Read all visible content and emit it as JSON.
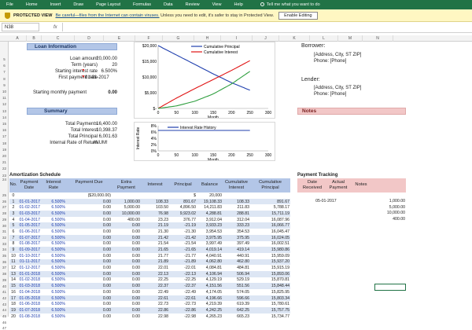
{
  "ribbon": {
    "tabs": [
      "File",
      "Home",
      "Insert",
      "Draw",
      "Page Layout",
      "Formulas",
      "Data",
      "Review",
      "View",
      "Help"
    ],
    "tell_me": "Tell me what you want to do"
  },
  "protected_view": {
    "label": "PROTECTED VIEW",
    "link": "Be careful—files from the Internet can contain viruses.",
    "message": " Unless you need to edit, it's safer to stay in Protected View.",
    "button": "Enable Editing"
  },
  "formula_bar": {
    "name_box": "N38",
    "fx": "fx"
  },
  "columns": [
    "A",
    "B",
    "C",
    "D",
    "E",
    "F",
    "G",
    "H",
    "I",
    "J",
    "K",
    "L",
    "M",
    "N"
  ],
  "rows": [
    "5",
    "6",
    "7",
    "8",
    "9",
    "10",
    "11",
    "12",
    "13",
    "14",
    "15",
    "16",
    "17",
    "18",
    "19",
    "20",
    "21",
    "22",
    "23",
    "24",
    "25",
    "26",
    "27",
    "28",
    "29",
    "30",
    "31",
    "32",
    "33",
    "34",
    "35",
    "36",
    "37",
    "38",
    "39",
    "40",
    "41",
    "42",
    "43",
    "44",
    "45",
    "46",
    "47"
  ],
  "loan_info": {
    "title": "Loan Information",
    "labels": [
      "Loan amount",
      "Term (years)",
      "Starting interest rate",
      "First payment date"
    ],
    "values": [
      "20,000.00",
      "20",
      "6.500%",
      "01-01-2017"
    ],
    "monthly_label": "Starting monthly payment",
    "monthly_value": "0.00"
  },
  "summary": {
    "title": "Summary",
    "labels": [
      "Total Payments",
      "Total Interest",
      "Total Principal",
      "Internal Rate of Return"
    ],
    "values": [
      "16,400.00",
      "10,398.37",
      "6,001.63",
      "#NUM!"
    ]
  },
  "borrower": {
    "label": "Borrower:",
    "address": "[Address, City, ST ZIP]",
    "phone": "Phone: [Phone]"
  },
  "lender": {
    "label": "Lender:",
    "address": "[Address, City, ST ZIP]",
    "phone": "Phone: [Phone]"
  },
  "notes_title": "Notes",
  "chart_data": [
    {
      "type": "line",
      "series": [
        {
          "name": "Cumulative Principal",
          "color": "#1f3fae",
          "x": [
            0,
            50,
            100,
            150,
            200,
            250
          ],
          "values": [
            20000,
            17000,
            14000,
            11000,
            8200,
            5800
          ]
        },
        {
          "name": "Cumulative Interest",
          "color": "#e01414",
          "x": [
            0,
            50,
            100,
            150,
            200,
            250
          ],
          "values": [
            0,
            3300,
            6300,
            9200,
            12100,
            15200
          ]
        },
        {
          "name": "",
          "color": "#2e9e3e",
          "x": [
            0,
            50,
            100,
            150,
            200,
            250
          ],
          "values": [
            0,
            800,
            2300,
            4600,
            7800,
            11800
          ]
        }
      ],
      "xlabel": "Month",
      "ylabel": "",
      "xlim": [
        0,
        300
      ],
      "ylim": [
        0,
        20000
      ],
      "x_ticks": [
        "0",
        "50",
        "100",
        "150",
        "200",
        "250",
        "300"
      ],
      "y_ticks": [
        "$-",
        "$5,000",
        "$10,000",
        "$15,000",
        "$20,000"
      ]
    },
    {
      "type": "line",
      "series": [
        {
          "name": "Interest Rate History",
          "color": "#1f3fae",
          "x": [
            0,
            250
          ],
          "values": [
            6.5,
            6.5
          ]
        }
      ],
      "xlabel": "Month",
      "ylabel": "Interest Rate",
      "xlim": [
        0,
        300
      ],
      "ylim": [
        0,
        8
      ],
      "x_ticks": [
        "0",
        "50",
        "100",
        "150",
        "200",
        "250",
        "300"
      ],
      "y_ticks": [
        "0%",
        "2%",
        "4%",
        "6%",
        "8%"
      ]
    }
  ],
  "amortization": {
    "title": "Amortization Schedule",
    "headers": [
      "No.",
      "Payment Date",
      "Interest Rate",
      "Payment Due",
      "Extra Payment",
      "Interest",
      "Principal",
      "Balance",
      "Cumulative Interest",
      "Cumulative Principal"
    ],
    "row0": [
      "0",
      "",
      "",
      "($20,000.00)",
      "",
      "",
      "$",
      "20,000",
      "",
      ""
    ],
    "rows": [
      [
        "1",
        "01-01-2017",
        "6.500%",
        "0.00",
        "1,000.00",
        "108.33",
        "891.67",
        "19,108.33",
        "108.33",
        "891.67"
      ],
      [
        "2",
        "01-02-2017",
        "6.500%",
        "0.00",
        "5,000.00",
        "103.50",
        "4,896.50",
        "14,211.83",
        "211.83",
        "5,788.17"
      ],
      [
        "3",
        "01-03-2017",
        "6.500%",
        "0.00",
        "10,000.00",
        "76.98",
        "9,923.02",
        "4,288.81",
        "288.81",
        "15,711.19"
      ],
      [
        "4",
        "01-04-2017",
        "6.500%",
        "0.00",
        "400.00",
        "23.23",
        "376.77",
        "3,912.04",
        "312.04",
        "16,087.96"
      ],
      [
        "5",
        "01-05-2017",
        "6.500%",
        "0.00",
        "0.00",
        "21.19",
        "-21.19",
        "3,933.23",
        "333.23",
        "16,066.77"
      ],
      [
        "6",
        "01-06-2017",
        "6.500%",
        "0.00",
        "0.00",
        "21.30",
        "-21.30",
        "3,954.53",
        "354.53",
        "16,045.47"
      ],
      [
        "7",
        "01-07-2017",
        "6.500%",
        "0.00",
        "0.00",
        "21.42",
        "-21.42",
        "3,975.95",
        "375.95",
        "16,024.05"
      ],
      [
        "8",
        "01-08-2017",
        "6.500%",
        "0.00",
        "0.00",
        "21.54",
        "-21.54",
        "3,997.49",
        "397.49",
        "16,002.51"
      ],
      [
        "9",
        "01-09-2017",
        "6.500%",
        "0.00",
        "0.00",
        "21.65",
        "-21.65",
        "4,019.14",
        "419.14",
        "15,980.86"
      ],
      [
        "10",
        "01-10-2017",
        "6.500%",
        "0.00",
        "0.00",
        "21.77",
        "-21.77",
        "4,040.91",
        "440.91",
        "15,959.09"
      ],
      [
        "11",
        "01-11-2017",
        "6.500%",
        "0.00",
        "0.00",
        "21.89",
        "-21.89",
        "4,062.80",
        "462.80",
        "15,937.20"
      ],
      [
        "12",
        "01-12-2017",
        "6.500%",
        "0.00",
        "0.00",
        "22.01",
        "-22.01",
        "4,084.81",
        "484.81",
        "15,915.19"
      ],
      [
        "13",
        "01-01-2018",
        "6.500%",
        "0.00",
        "0.00",
        "22.13",
        "-22.13",
        "4,106.94",
        "506.94",
        "15,893.06"
      ],
      [
        "14",
        "01-02-2018",
        "6.500%",
        "0.00",
        "0.00",
        "22.25",
        "-22.25",
        "4,129.19",
        "529.19",
        "15,870.81"
      ],
      [
        "15",
        "01-03-2018",
        "6.500%",
        "0.00",
        "0.00",
        "22.37",
        "-22.37",
        "4,151.56",
        "551.56",
        "15,848.44"
      ],
      [
        "16",
        "01-04-2018",
        "6.500%",
        "0.00",
        "0.00",
        "22.49",
        "-22.49",
        "4,174.05",
        "574.05",
        "15,825.95"
      ],
      [
        "17",
        "01-05-2018",
        "6.500%",
        "0.00",
        "0.00",
        "22.61",
        "-22.61",
        "4,196.66",
        "596.66",
        "15,803.34"
      ],
      [
        "18",
        "01-06-2018",
        "6.500%",
        "0.00",
        "0.00",
        "22.73",
        "-22.73",
        "4,219.39",
        "619.39",
        "15,780.61"
      ],
      [
        "19",
        "01-07-2018",
        "6.500%",
        "0.00",
        "0.00",
        "22.86",
        "-22.86",
        "4,242.25",
        "642.25",
        "15,757.75"
      ],
      [
        "20",
        "01-08-2018",
        "6.500%",
        "0.00",
        "0.00",
        "22.98",
        "-22.98",
        "4,265.23",
        "665.23",
        "15,734.77"
      ]
    ]
  },
  "payment_tracking": {
    "title": "Payment Tracking",
    "headers": [
      "Date Received",
      "Actual Payment",
      "Notes"
    ],
    "rows": [
      [
        "05-01-2017",
        "1,000.00"
      ],
      [
        "",
        "5,000.00"
      ],
      [
        "",
        "10,000.00"
      ],
      [
        "",
        "400.00"
      ]
    ]
  }
}
